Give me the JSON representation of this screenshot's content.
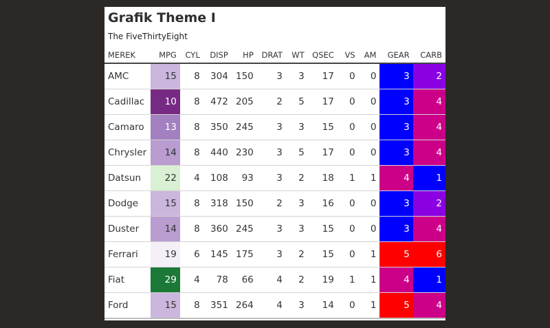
{
  "title": "Grafik Theme I",
  "subtitle": "The FiveThirtyEight",
  "columns": [
    "MEREK",
    "MPG",
    "CYL",
    "DISP",
    "HP",
    "DRAT",
    "WT",
    "QSEC",
    "VS",
    "AM",
    "GEAR",
    "CARB"
  ],
  "rows": [
    {
      "make": "AMC",
      "mpg": 15,
      "cyl": 8,
      "disp": 304,
      "hp": 150,
      "drat": 3,
      "wt": 3,
      "qsec": 17,
      "vs": 0,
      "am": 0,
      "gear": 3,
      "carb": 2
    },
    {
      "make": "Cadillac",
      "mpg": 10,
      "cyl": 8,
      "disp": 472,
      "hp": 205,
      "drat": 2,
      "wt": 5,
      "qsec": 17,
      "vs": 0,
      "am": 0,
      "gear": 3,
      "carb": 4
    },
    {
      "make": "Camaro",
      "mpg": 13,
      "cyl": 8,
      "disp": 350,
      "hp": 245,
      "drat": 3,
      "wt": 3,
      "qsec": 15,
      "vs": 0,
      "am": 0,
      "gear": 3,
      "carb": 4
    },
    {
      "make": "Chrysler",
      "mpg": 14,
      "cyl": 8,
      "disp": 440,
      "hp": 230,
      "drat": 3,
      "wt": 5,
      "qsec": 17,
      "vs": 0,
      "am": 0,
      "gear": 3,
      "carb": 4
    },
    {
      "make": "Datsun",
      "mpg": 22,
      "cyl": 4,
      "disp": 108,
      "hp": 93,
      "drat": 3,
      "wt": 2,
      "qsec": 18,
      "vs": 1,
      "am": 1,
      "gear": 4,
      "carb": 1
    },
    {
      "make": "Dodge",
      "mpg": 15,
      "cyl": 8,
      "disp": 318,
      "hp": 150,
      "drat": 2,
      "wt": 3,
      "qsec": 16,
      "vs": 0,
      "am": 0,
      "gear": 3,
      "carb": 2
    },
    {
      "make": "Duster",
      "mpg": 14,
      "cyl": 8,
      "disp": 360,
      "hp": 245,
      "drat": 3,
      "wt": 3,
      "qsec": 15,
      "vs": 0,
      "am": 0,
      "gear": 3,
      "carb": 4
    },
    {
      "make": "Ferrari",
      "mpg": 19,
      "cyl": 6,
      "disp": 145,
      "hp": 175,
      "drat": 3,
      "wt": 2,
      "qsec": 15,
      "vs": 0,
      "am": 1,
      "gear": 5,
      "carb": 6
    },
    {
      "make": "Fiat",
      "mpg": 29,
      "cyl": 4,
      "disp": 78,
      "hp": 66,
      "drat": 4,
      "wt": 2,
      "qsec": 19,
      "vs": 1,
      "am": 1,
      "gear": 4,
      "carb": 1
    },
    {
      "make": "Ford",
      "mpg": 15,
      "cyl": 8,
      "disp": 351,
      "hp": 264,
      "drat": 4,
      "wt": 3,
      "qsec": 14,
      "vs": 0,
      "am": 1,
      "gear": 5,
      "carb": 4
    }
  ],
  "colors": {
    "background": "#2b2826",
    "card": "#ffffff",
    "mpg_scale": {
      "10": "#762a83",
      "13": "#a380bf",
      "14": "#b99cd0",
      "15": "#cbb6dd",
      "19": "#f5eff7",
      "22": "#d9f0d3",
      "29": "#1b7837"
    },
    "gear_carb_scale": {
      "1": "#0000ff",
      "2": "#8a00e2",
      "3": "#0000ff",
      "4": "#cc0088",
      "5": "#ff0000",
      "6": "#ff0000"
    },
    "dark_text": "#333333",
    "light_text": "#ffffff"
  }
}
